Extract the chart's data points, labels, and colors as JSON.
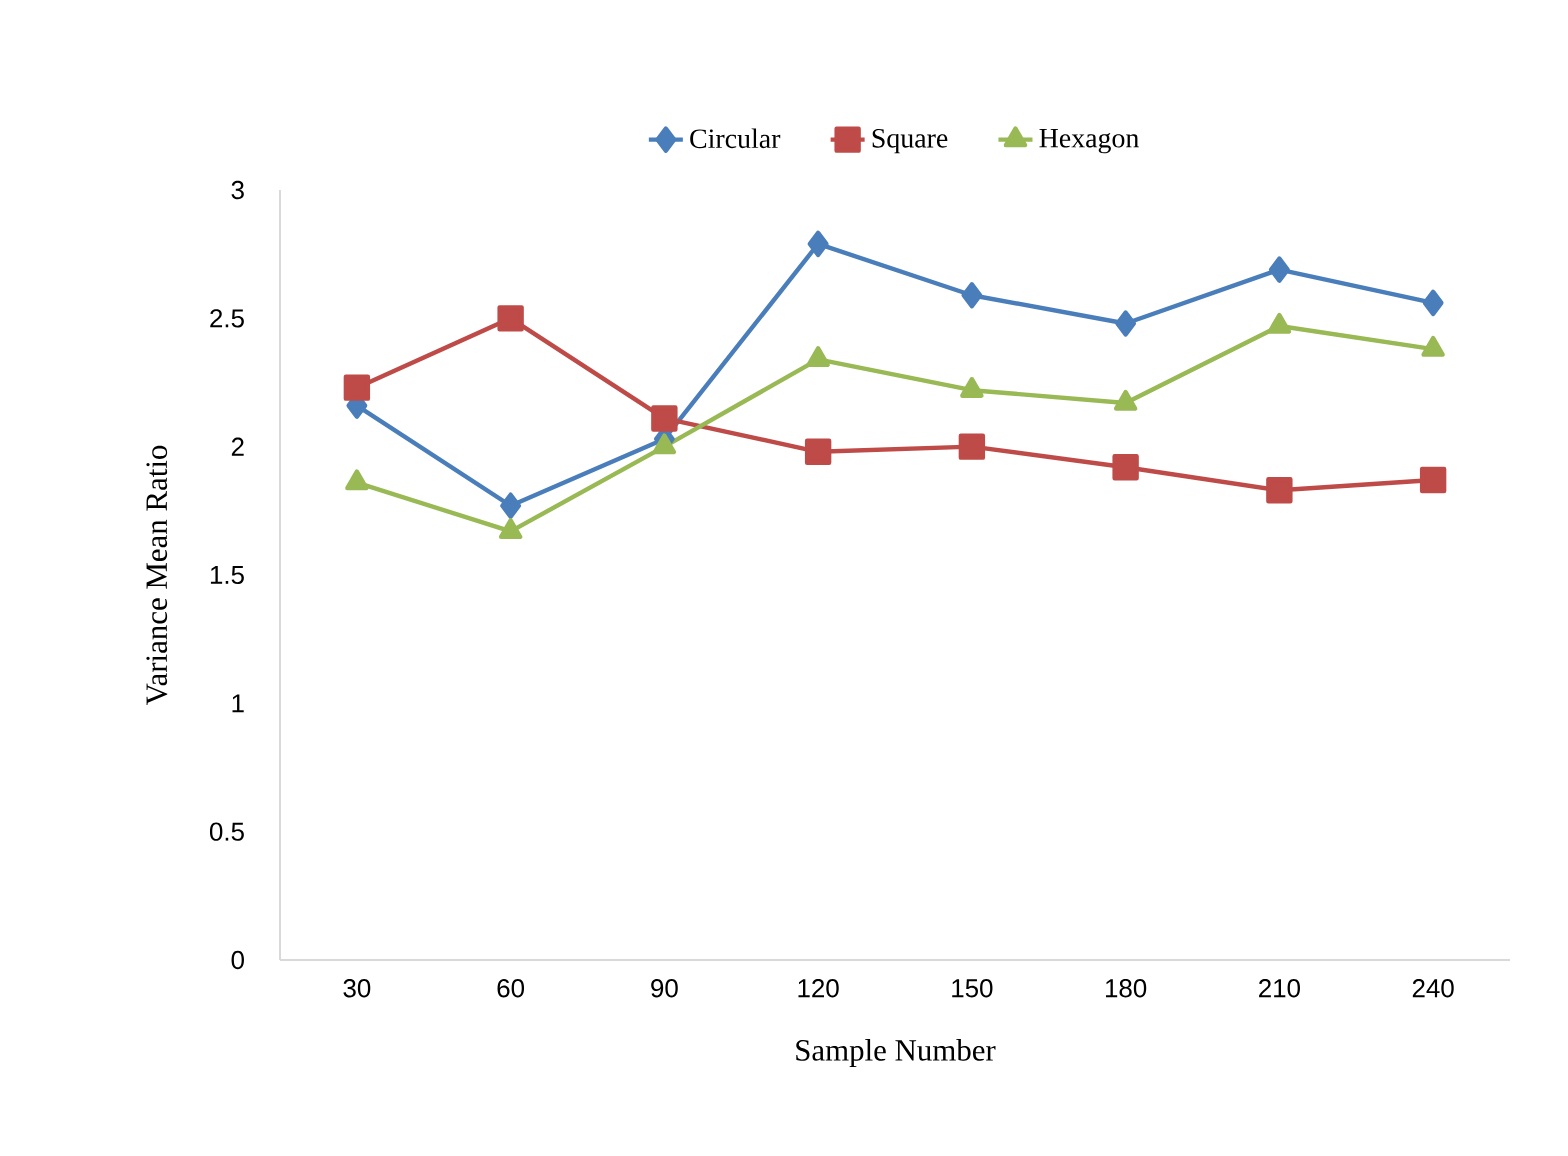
{
  "chart_data": {
    "type": "line",
    "xlabel": "Sample Number",
    "ylabel": "Variance Mean Ratio",
    "categories": [
      "30",
      "60",
      "90",
      "120",
      "150",
      "180",
      "210",
      "240"
    ],
    "series": [
      {
        "name": "Circular",
        "color": "#4a7ebb",
        "marker": "diamond",
        "values": [
          2.16,
          1.77,
          2.03,
          2.79,
          2.59,
          2.48,
          2.69,
          2.56
        ]
      },
      {
        "name": "Square",
        "color": "#be4b48",
        "marker": "square",
        "values": [
          2.23,
          2.5,
          2.11,
          1.98,
          2.0,
          1.92,
          1.83,
          1.87
        ]
      },
      {
        "name": "Hexagon",
        "color": "#98b954",
        "marker": "triangle",
        "values": [
          1.86,
          1.67,
          2.0,
          2.34,
          2.22,
          2.17,
          2.47,
          2.38
        ]
      }
    ],
    "ylim": [
      0,
      3
    ],
    "yticks": [
      0,
      0.5,
      1,
      1.5,
      2,
      2.5,
      3
    ],
    "grid": false,
    "legend": "top",
    "line_style": "solid"
  }
}
